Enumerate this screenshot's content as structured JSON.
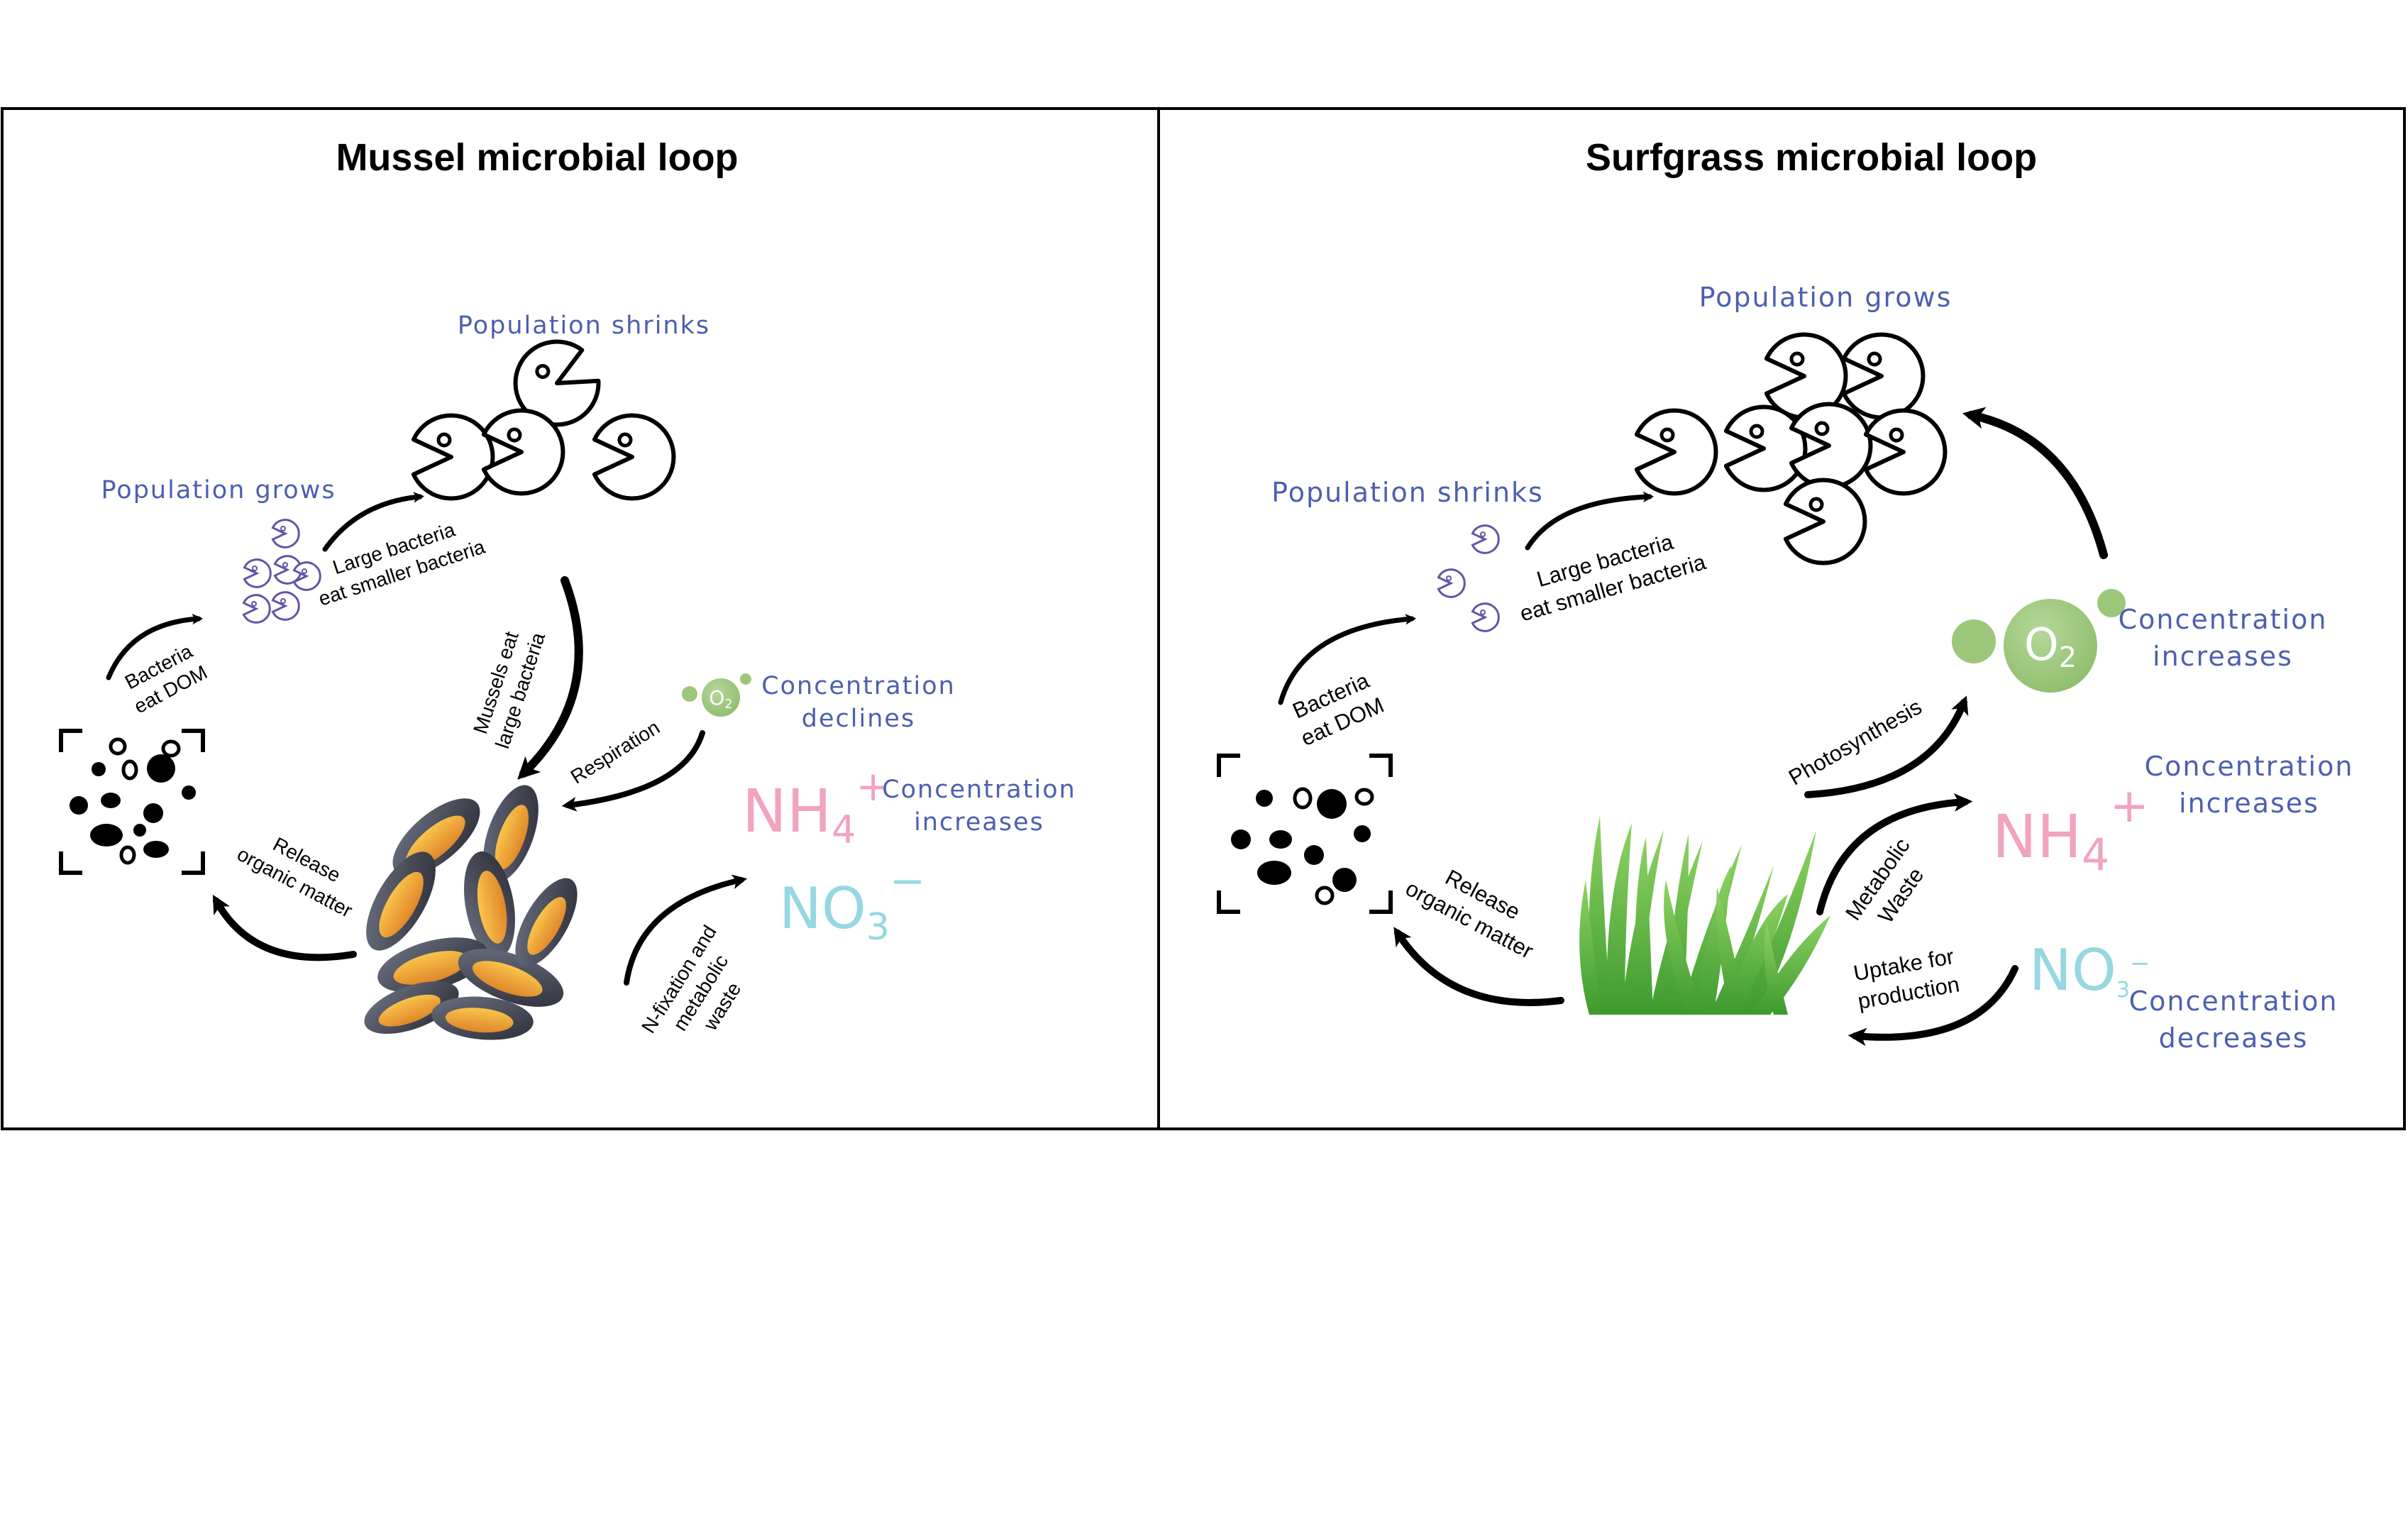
{
  "mussel_panel": {
    "title": "Mussel microbial loop",
    "population_shrinks": "Population shrinks",
    "population_grows": "Population grows",
    "large_bacteria_line1": "Large bacteria",
    "large_bacteria_line2": "eat smaller bacteria",
    "bacteria_eat_line1": "Bacteria",
    "bacteria_eat_line2": "eat DOM",
    "mussels_eat_line1": "Mussels eat",
    "mussels_eat_line2": "large bacteria",
    "respiration": "Respiration",
    "o2_label": "O",
    "o2_sub": "2",
    "o2_change_line1": "Concentration",
    "o2_change_line2": "declines",
    "release_line1": "Release",
    "release_line2": "organic matter",
    "nh4_main": "NH",
    "nh4_sub": "4",
    "nh4_sup": "+",
    "nh4_change_line1": "Concentration",
    "nh4_change_line2": "increases",
    "no3_main": "NO",
    "no3_sub": "3",
    "no3_sup": "−",
    "nfix_line1": "N-fixation and",
    "nfix_line2": "metabolic",
    "nfix_line3": "waste"
  },
  "surfgrass_panel": {
    "title": "Surfgrass microbial loop",
    "population_grows": "Population grows",
    "population_shrinks": "Population  shrinks",
    "large_bacteria_line1": "Large bacteria",
    "large_bacteria_line2": "eat smaller bacteria",
    "bacteria_eat_line1": "Bacteria",
    "bacteria_eat_line2": "eat DOM",
    "photosynthesis": "Photosynthesis",
    "o2_label": "O",
    "o2_sub": "2",
    "o2_change_line1": "Concentration",
    "o2_change_line2": "increases",
    "nh4_main": "NH",
    "nh4_sub": "4",
    "nh4_sup": "+",
    "nh4_change_line1": "Concentration",
    "nh4_change_line2": "increases",
    "metabolic_line1": "Metabolic",
    "metabolic_line2": "Waste",
    "release_line1": "Release",
    "release_line2": "organic matter",
    "uptake_line1": "Uptake for",
    "uptake_line2": "production",
    "no3_main": "NO",
    "no3_sub": "3",
    "no3_sup": "−",
    "no3_change_line1": "Concentration",
    "no3_change_line2": "decreases"
  },
  "colors": {
    "label_blue": "#4d5fae",
    "nh4_pink": "#f2a3bd",
    "no3_cyan": "#96d7e1",
    "o2_green": "#9cc77a",
    "grass_green": "#5cb83a"
  },
  "icons": [
    "pacman-bacteria-icon",
    "dom-particles-icon",
    "mussel-cluster-icon",
    "surfgrass-icon",
    "o2-bubble-icon"
  ]
}
